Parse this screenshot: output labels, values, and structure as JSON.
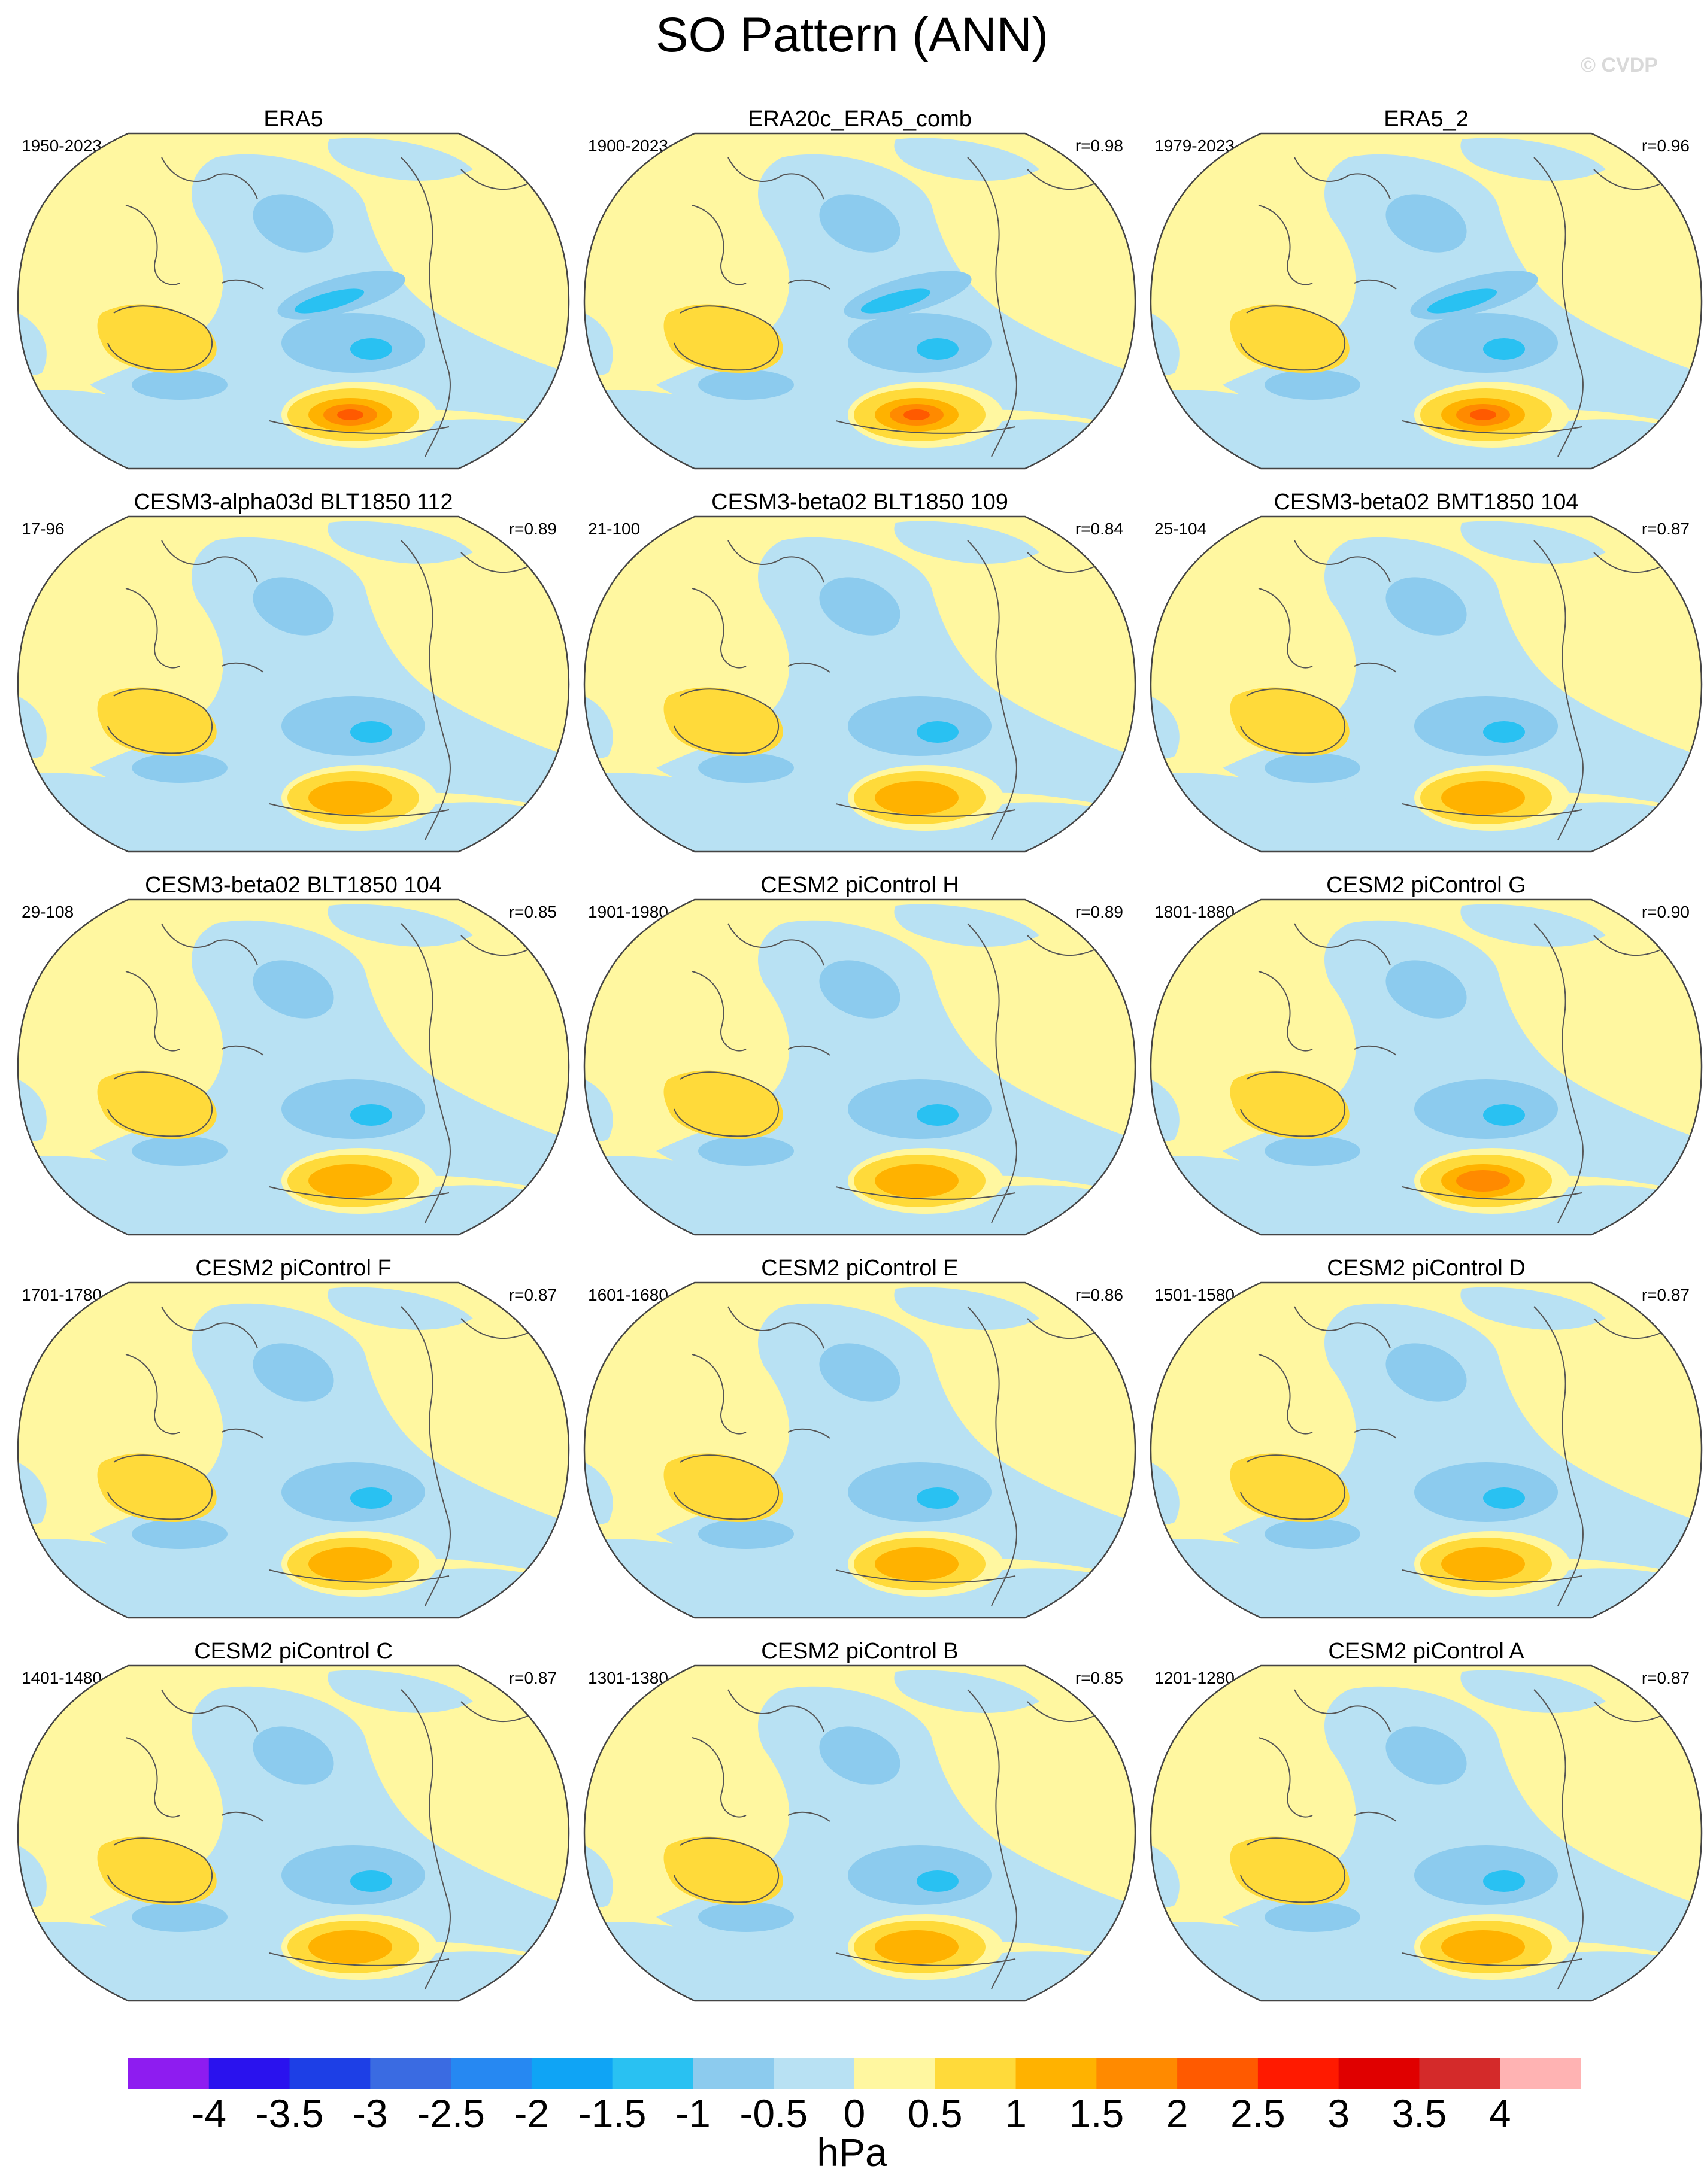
{
  "title": "SO Pattern (ANN)",
  "watermark": "© CVDP",
  "units": "hPa",
  "icons": {
    "map": "rounded-globe-map-icon",
    "color_scale": "color-scale-icon"
  },
  "colorbar": {
    "labels": [
      "-4",
      "-3.5",
      "-3",
      "-2.5",
      "-2",
      "-1.5",
      "-1",
      "-0.5",
      "0",
      "0.5",
      "1",
      "1.5",
      "2",
      "2.5",
      "3",
      "3.5",
      "4"
    ],
    "colors": [
      "#8e1cf0",
      "#2a12ee",
      "#1d3fe6",
      "#3a6be2",
      "#2688f2",
      "#0fa4f5",
      "#29c1f2",
      "#8ccbee",
      "#b8e1f3",
      "#fff7a0",
      "#ffda3a",
      "#ffb200",
      "#ff8a00",
      "#ff5a00",
      "#ff1a00",
      "#e00000",
      "#d42a2a",
      "#ffb3b3"
    ]
  },
  "palette": {
    "land_line": "#555555",
    "pos1": "#fff7a0",
    "pos2": "#ffda3a",
    "pos3": "#ffb200",
    "pos4": "#ff8a00",
    "pos5": "#ff5a00",
    "neg1": "#b8e1f3",
    "neg2": "#8ccbee",
    "neg3": "#29c1f2"
  },
  "panels": [
    {
      "title": "ERA5",
      "period": "1950-2023",
      "corr": "",
      "strength": 3.0,
      "negstrength": 1.8
    },
    {
      "title": "ERA20c_ERA5_comb",
      "period": "1900-2023",
      "corr": "r=0.98",
      "strength": 3.0,
      "negstrength": 1.8
    },
    {
      "title": "ERA5_2",
      "period": "1979-2023",
      "corr": "r=0.96",
      "strength": 2.5,
      "negstrength": 1.8
    },
    {
      "title": "CESM3-alpha03d BLT1850 112",
      "period": "17-96",
      "corr": "r=0.89",
      "strength": 1.5,
      "negstrength": 1.6
    },
    {
      "title": "CESM3-beta02 BLT1850 109",
      "period": "21-100",
      "corr": "r=0.84",
      "strength": 1.5,
      "negstrength": 1.6
    },
    {
      "title": "CESM3-beta02 BMT1850 104",
      "period": "25-104",
      "corr": "r=0.87",
      "strength": 1.5,
      "negstrength": 1.6
    },
    {
      "title": "CESM3-beta02 BLT1850 104",
      "period": "29-108",
      "corr": "r=0.85",
      "strength": 1.5,
      "negstrength": 1.6
    },
    {
      "title": "CESM2 piControl H",
      "period": "1901-1980",
      "corr": "r=0.89",
      "strength": 1.5,
      "negstrength": 1.6
    },
    {
      "title": "CESM2 piControl G",
      "period": "1801-1880",
      "corr": "r=0.90",
      "strength": 2.0,
      "negstrength": 1.6
    },
    {
      "title": "CESM2 piControl F",
      "period": "1701-1780",
      "corr": "r=0.87",
      "strength": 1.5,
      "negstrength": 1.6
    },
    {
      "title": "CESM2 piControl E",
      "period": "1601-1680",
      "corr": "r=0.86",
      "strength": 1.5,
      "negstrength": 1.6
    },
    {
      "title": "CESM2 piControl D",
      "period": "1501-1580",
      "corr": "r=0.87",
      "strength": 1.5,
      "negstrength": 1.6
    },
    {
      "title": "CESM2 piControl C",
      "period": "1401-1480",
      "corr": "r=0.87",
      "strength": 1.5,
      "negstrength": 1.6
    },
    {
      "title": "CESM2 piControl B",
      "period": "1301-1380",
      "corr": "r=0.85",
      "strength": 1.5,
      "negstrength": 1.6
    },
    {
      "title": "CESM2 piControl A",
      "period": "1201-1280",
      "corr": "r=0.87",
      "strength": 1.5,
      "negstrength": 1.6
    }
  ]
}
